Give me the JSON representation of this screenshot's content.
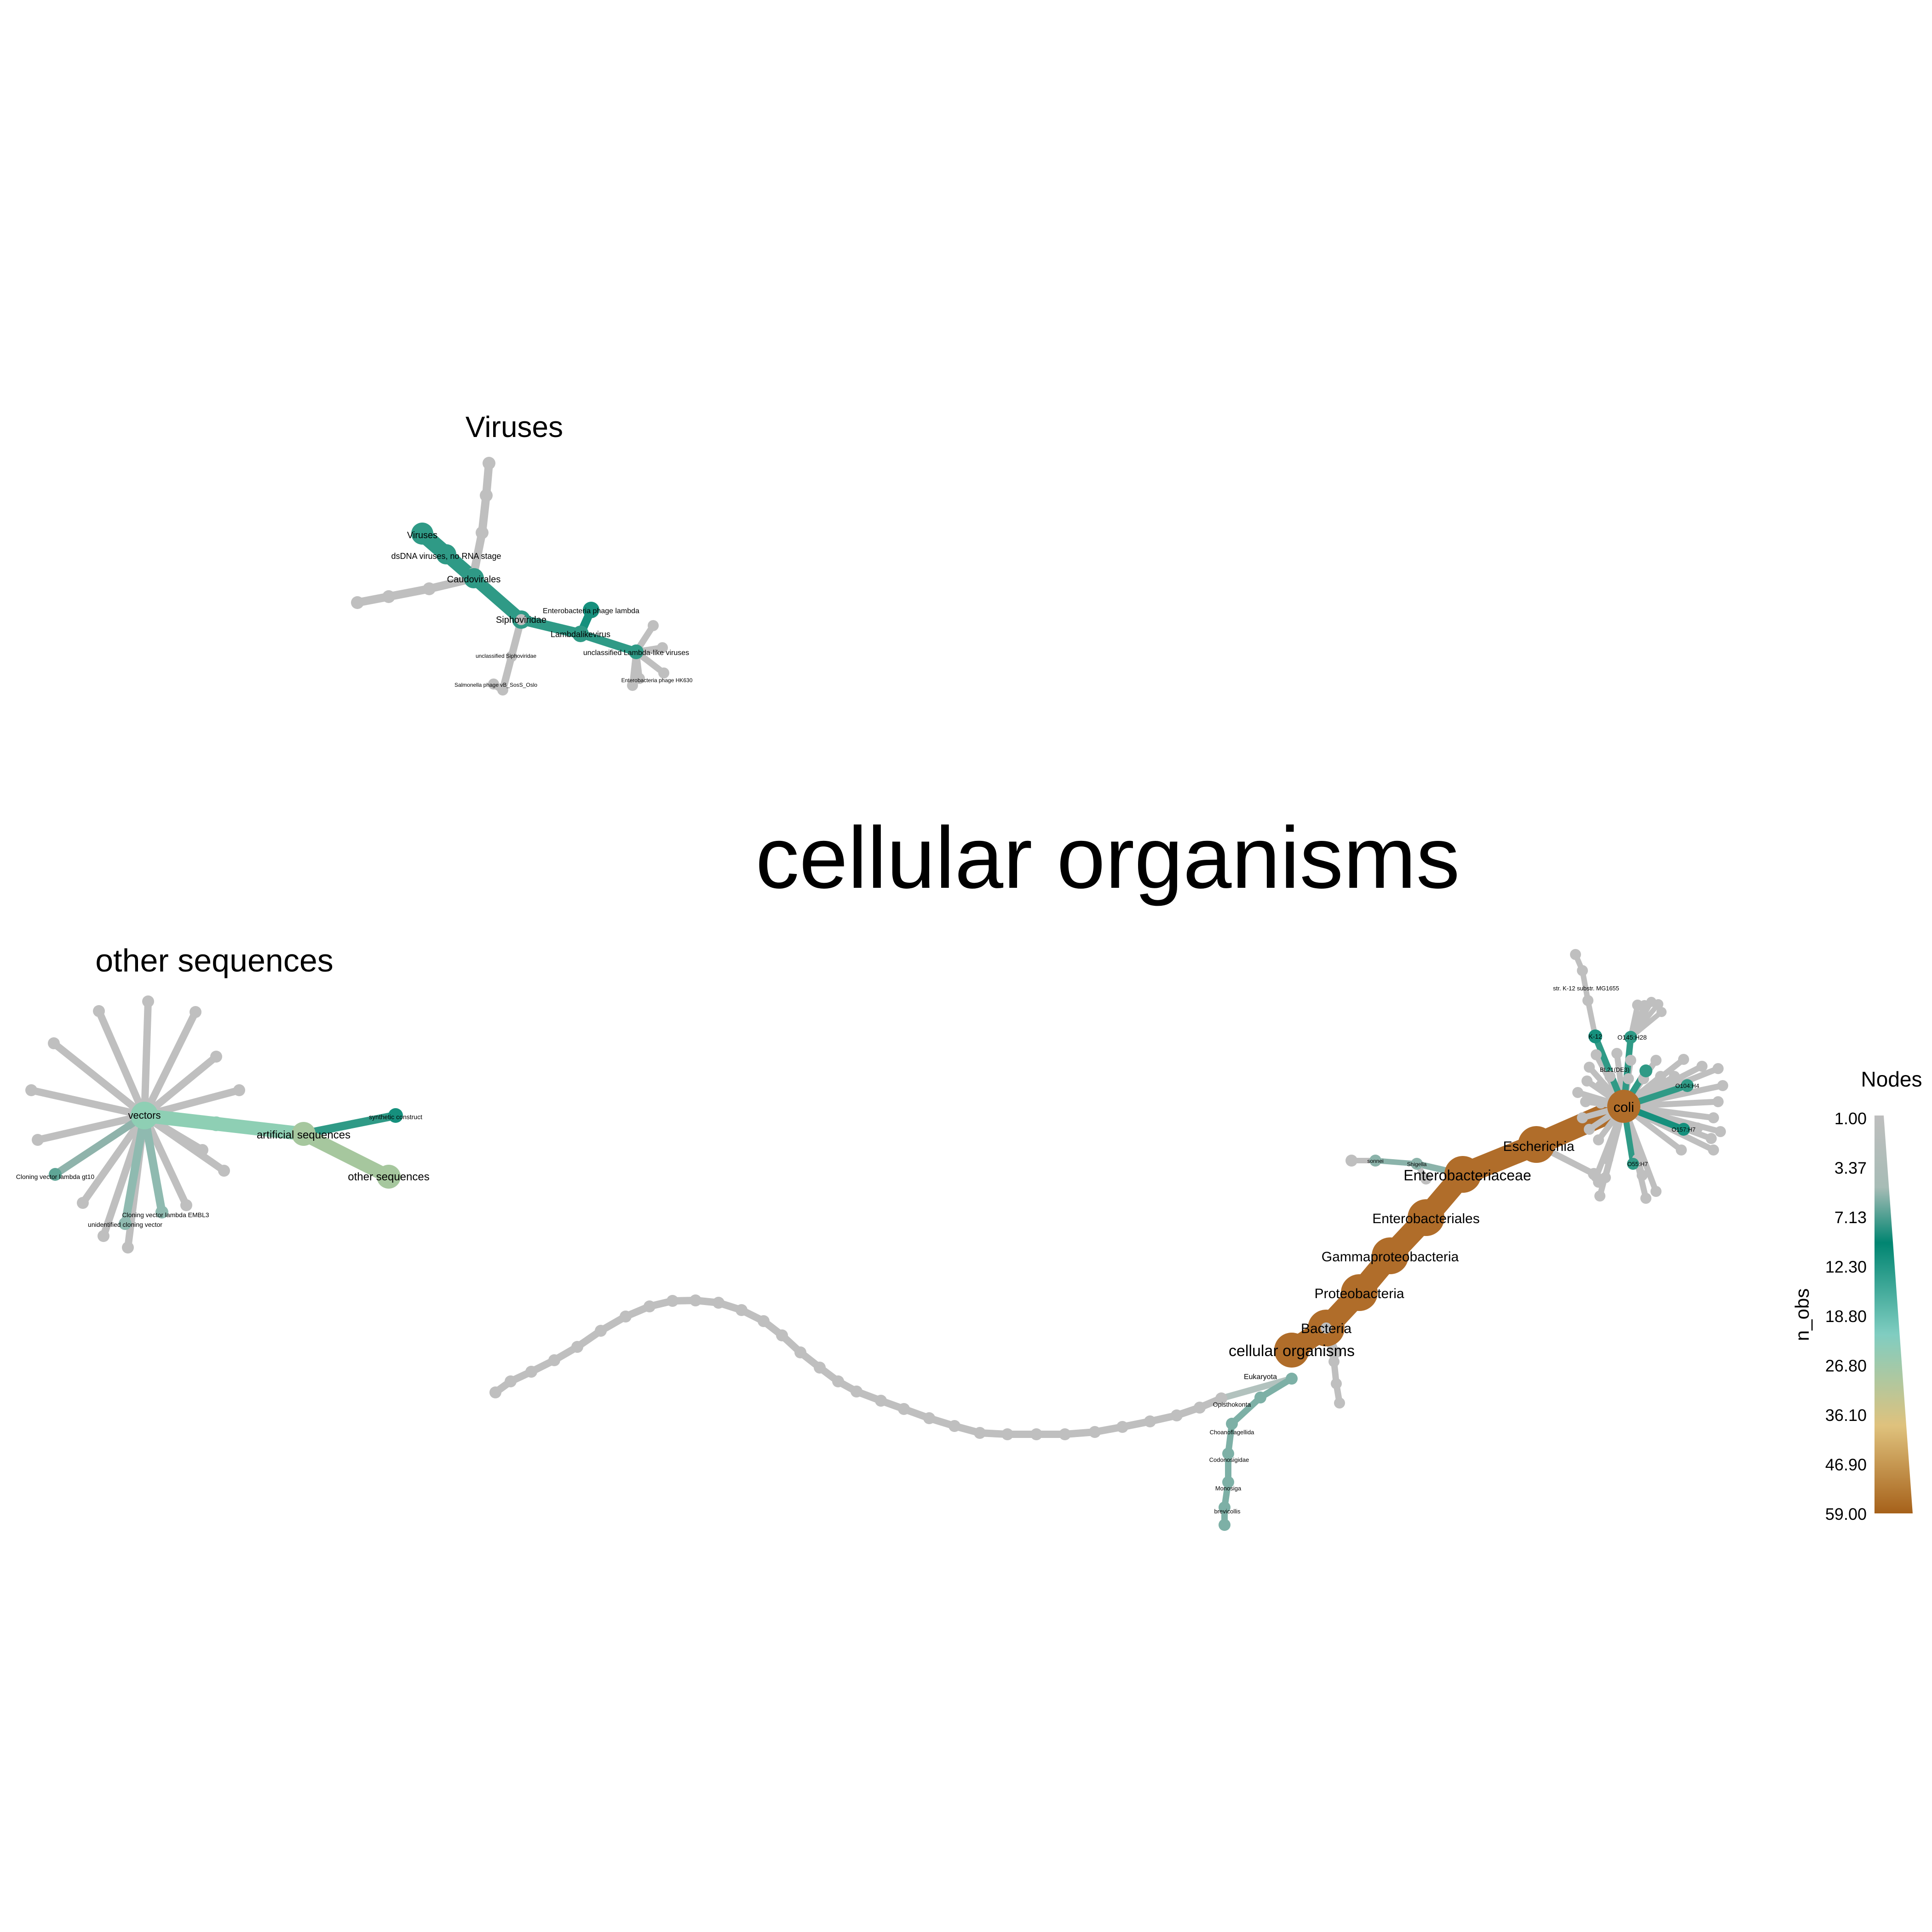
{
  "titles": {
    "viruses": "Viruses",
    "other_sequences": "other sequences",
    "cellular_organisms": "cellular organisms"
  },
  "legend": {
    "title": "Nodes",
    "axis_label": "n_obs",
    "ticks": [
      "1.00",
      "3.37",
      "7.13",
      "12.30",
      "18.80",
      "26.80",
      "36.10",
      "46.90",
      "59.00"
    ],
    "colors": [
      "#bebebe",
      "#a7bcb6",
      "#018571",
      "#80cdc1",
      "#dfc27d",
      "#a6611a"
    ]
  },
  "viruses_labels": {
    "viruses": "Viruses",
    "dsdna": "dsDNA viruses, no RNA stage",
    "caudovirales": "Caudovirales",
    "siphoviridae": "Siphoviridae",
    "ent_phage_lambda": "Enterobacteria phage lambda",
    "lambdalikevirus": "Lambdalikevirus",
    "unclassified_lambda": "unclassified Lambda-like viruses",
    "unclassified_sipho": "unclassified Siphoviridae",
    "salmonella_phage": "Salmonella phage vB_SosS_Oslo",
    "ent_phage_hk630": "Enterobacteria phage HK630"
  },
  "other_labels": {
    "vectors": "vectors",
    "artificial": "artificial sequences",
    "synthetic": "synthetic construct",
    "other_sequences": "other sequences",
    "cloning_gt10": "Cloning vector lambda gt10",
    "cloning_embl3": "Cloning vector lambda EMBL3",
    "unidentified": "unidentified cloning vector"
  },
  "cellular_labels": {
    "cellular_organisms": "cellular organisms",
    "bacteria": "Bacteria",
    "proteobacteria": "Proteobacteria",
    "gammaproteobacteria": "Gammaproteobacteria",
    "enterobacteriales": "Enterobacteriales",
    "enterobacteriaceae": "Enterobacteriaceae",
    "escherichia": "Escherichia",
    "coli": "coli",
    "eukaryota": "Eukaryota",
    "opisthokonta": "Opisthokonta",
    "choanoflagellida": "Choanoflagellida",
    "codonosigidae": "Codonosigidae",
    "monosiga": "Monosiga",
    "brevicollis": "brevicollis",
    "k12": "K-12",
    "k12_substr": "str. K-12 substr. MG1655",
    "o145": "O145:H28",
    "o104": "O104:H4",
    "o157": "O157:H7",
    "o55": "O55:H7",
    "bl21": "BL21(DE3)",
    "shigella1": "sonnei",
    "shigella2": "Shigella"
  }
}
